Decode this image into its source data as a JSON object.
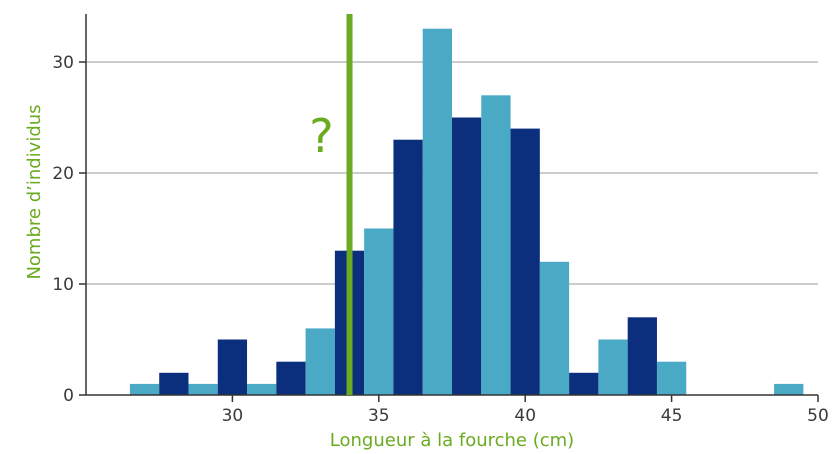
{
  "chart_data": {
    "type": "bar",
    "title": "",
    "xlabel": "Longueur à la fourche (cm)",
    "ylabel": "Nombre d’individus",
    "xlim": [
      25,
      50
    ],
    "ylim": [
      0,
      35
    ],
    "xticks": [
      30,
      35,
      40,
      45,
      50
    ],
    "yticks": [
      0,
      10,
      20,
      30
    ],
    "grid": "horizontal",
    "bin_width": 1,
    "bins": [
      {
        "start": 26.5,
        "value": 1
      },
      {
        "start": 27.5,
        "value": 2
      },
      {
        "start": 28.5,
        "value": 1
      },
      {
        "start": 29.5,
        "value": 5
      },
      {
        "start": 30.5,
        "value": 1
      },
      {
        "start": 31.5,
        "value": 3
      },
      {
        "start": 32.5,
        "value": 6
      },
      {
        "start": 33.5,
        "value": 13
      },
      {
        "start": 34.5,
        "value": 15
      },
      {
        "start": 35.5,
        "value": 23
      },
      {
        "start": 36.5,
        "value": 33
      },
      {
        "start": 37.5,
        "value": 25
      },
      {
        "start": 38.5,
        "value": 27
      },
      {
        "start": 39.5,
        "value": 24
      },
      {
        "start": 40.5,
        "value": 12
      },
      {
        "start": 41.5,
        "value": 2
      },
      {
        "start": 42.5,
        "value": 5
      },
      {
        "start": 43.5,
        "value": 7
      },
      {
        "start": 44.5,
        "value": 3
      },
      {
        "start": 45.5,
        "value": 0
      },
      {
        "start": 46.5,
        "value": 0
      },
      {
        "start": 47.5,
        "value": 0
      },
      {
        "start": 48.5,
        "value": 1
      }
    ],
    "marker": {
      "x": 34.0,
      "label": "?"
    },
    "colors": {
      "bar_even": "#4aaac6",
      "bar_odd": "#0c2f7d",
      "marker": "#6aab1f",
      "axis_title": "#6aab1f",
      "axis": "#333333",
      "grid": "#9a9a9a"
    }
  }
}
